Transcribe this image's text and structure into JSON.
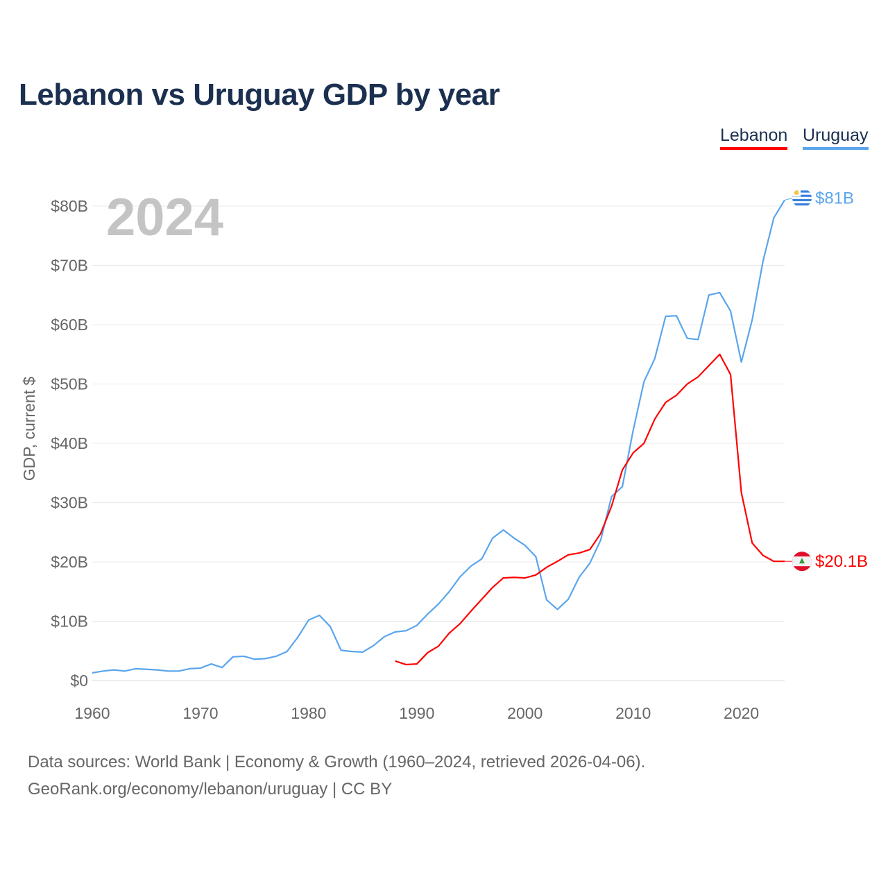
{
  "title": "Lebanon vs Uruguay GDP by year",
  "year_watermark": "2024",
  "footer": {
    "line1": "Data sources: World Bank | Economy & Growth (1960–2024, retrieved 2026-04-06).",
    "line2": "GeoRank.org/economy/lebanon/uruguay | CC BY"
  },
  "chart_data": {
    "type": "line",
    "title": "Lebanon vs Uruguay GDP by year",
    "xlabel": "",
    "ylabel": "GDP, current $",
    "xlim": [
      1960,
      2024
    ],
    "ylim": [
      0,
      85
    ],
    "x_ticks": [
      1960,
      1970,
      1980,
      1990,
      2000,
      2010,
      2020
    ],
    "y_ticks": [
      0,
      10,
      20,
      30,
      40,
      50,
      60,
      70,
      80
    ],
    "y_tick_labels": [
      "$0",
      "$10B",
      "$20B",
      "$30B",
      "$40B",
      "$50B",
      "$60B",
      "$70B",
      "$80B"
    ],
    "grid": true,
    "legend": "top-right",
    "series": [
      {
        "name": "Lebanon",
        "color": "#ff0000",
        "end_label": "$20.1B",
        "flag": "lebanon-flag",
        "start_year": 1988,
        "values": [
          3.3,
          2.7,
          2.8,
          4.7,
          5.8,
          8.0,
          9.6,
          11.7,
          13.7,
          15.7,
          17.3,
          17.4,
          17.3,
          17.8,
          19.1,
          20.1,
          21.2,
          21.5,
          22.1,
          24.8,
          29.4,
          35.5,
          38.4,
          40.0,
          44.1,
          46.9,
          48.1,
          50.0,
          51.2,
          53.1,
          55.0,
          51.6,
          31.7,
          23.2,
          21.1,
          20.1,
          20.1
        ]
      },
      {
        "name": "Uruguay",
        "color": "#5aa5ec",
        "end_label": "$81B",
        "flag": "uruguay-flag",
        "start_year": 1960,
        "values": [
          1.3,
          1.6,
          1.8,
          1.6,
          2.0,
          1.9,
          1.8,
          1.6,
          1.6,
          2.0,
          2.1,
          2.8,
          2.2,
          4.0,
          4.1,
          3.6,
          3.7,
          4.1,
          4.9,
          7.3,
          10.2,
          11.0,
          9.1,
          5.1,
          4.9,
          4.8,
          5.9,
          7.4,
          8.2,
          8.4,
          9.3,
          11.2,
          12.9,
          15.0,
          17.5,
          19.3,
          20.5,
          24.0,
          25.4,
          24.0,
          22.8,
          20.9,
          13.6,
          12.0,
          13.7,
          17.4,
          19.8,
          23.7,
          31.0,
          32.7,
          42.2,
          50.4,
          54.3,
          61.4,
          61.5,
          57.7,
          57.5,
          65.0,
          65.4,
          62.3,
          53.7,
          60.8,
          70.7,
          78.0,
          81.0
        ]
      }
    ]
  }
}
